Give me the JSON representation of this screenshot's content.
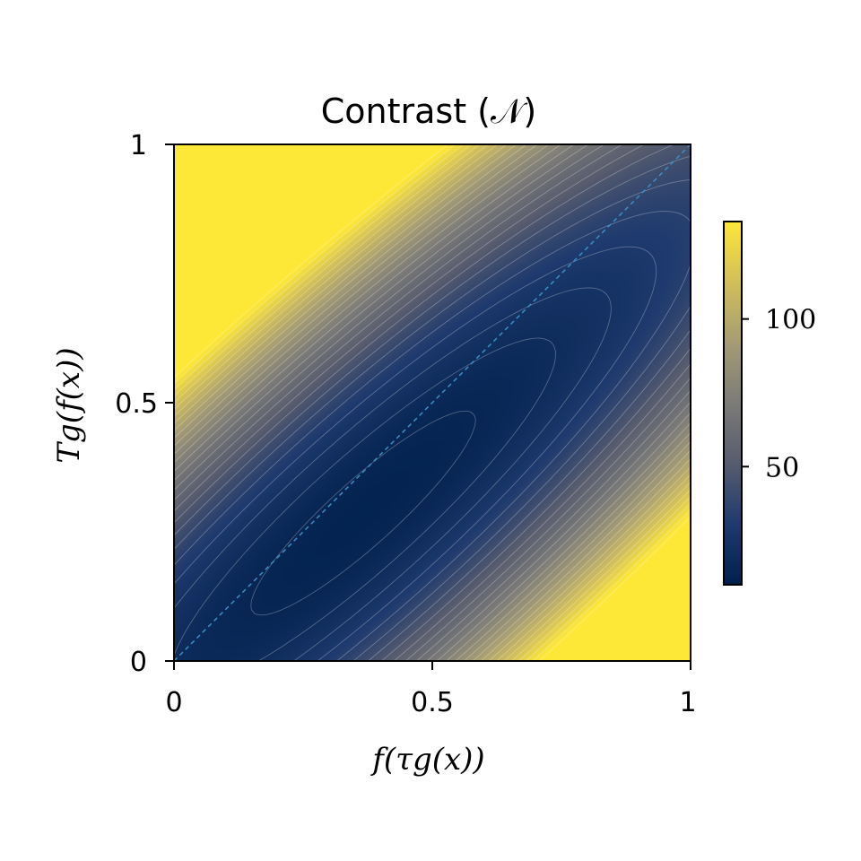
{
  "chart_data": {
    "type": "heatmap",
    "title": "Contrast (𝒩)",
    "xlabel": "f(τg(x))",
    "ylabel": "Tg(f(x))",
    "xlim": [
      0,
      1
    ],
    "ylim": [
      0,
      1
    ],
    "x_ticks": [
      0,
      0.5,
      1
    ],
    "x_tick_labels": [
      "0",
      "0.5",
      "1"
    ],
    "y_ticks": [
      0,
      0.5,
      1
    ],
    "y_tick_labels": [
      "0",
      "0.5",
      "1"
    ],
    "colorbar": {
      "min": 10,
      "max": 133,
      "ticks": [
        50,
        100
      ],
      "tick_labels": [
        "50",
        "100"
      ],
      "colormap": "cividis",
      "colors": [
        "#00204c",
        "#1e3a6e",
        "#575c6e",
        "#7c7b78",
        "#a59c74",
        "#d2bf5a",
        "#fde737"
      ]
    },
    "surface": {
      "description_values": "contrast value as a function of (x, y)",
      "minimum": {
        "x": 0.3,
        "y": 0.38,
        "value": 10
      },
      "ridge": "low values along diagonal band from (0.1,0.2) to (1,0.85)",
      "corner_values": {
        "top_left": 133,
        "bottom_right": 133,
        "bottom_left": 30,
        "top_right": 60
      }
    },
    "reference_line": {
      "from": [
        0,
        0
      ],
      "to": [
        1,
        1
      ],
      "style": "dashed",
      "color": "#3b8fc4"
    },
    "contours": {
      "count": 26,
      "color": "#ffffff"
    },
    "grid": false
  }
}
